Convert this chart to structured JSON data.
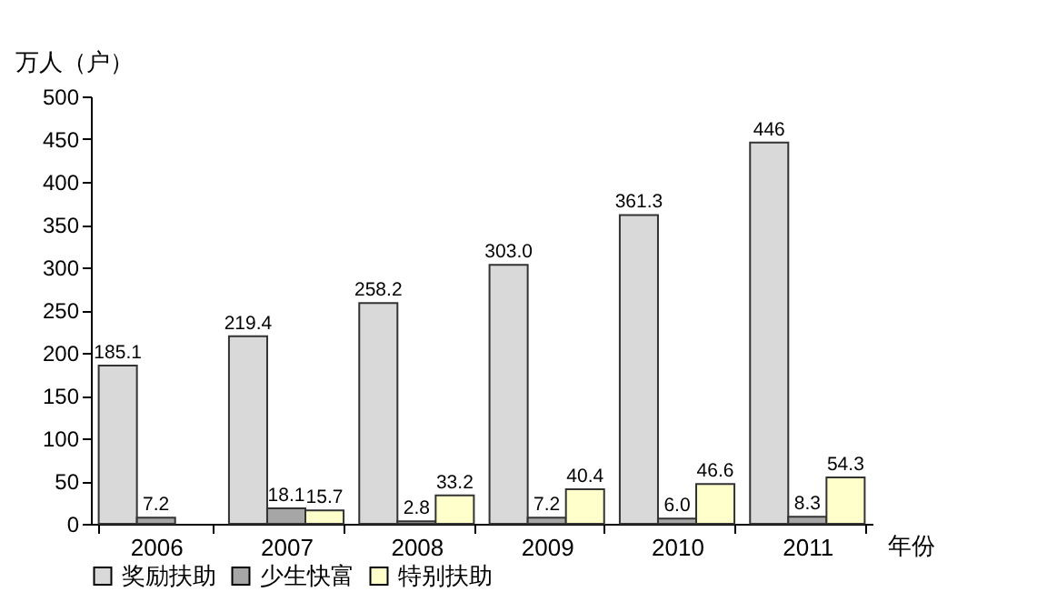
{
  "chart_data": {
    "type": "bar",
    "ylabel": "万人（户）",
    "xlabel": "年份",
    "categories": [
      "2006",
      "2007",
      "2008",
      "2009",
      "2010",
      "2011"
    ],
    "series": [
      {
        "name": "奖励扶助",
        "color": "#d9d9d9",
        "values": [
          185.1,
          219.4,
          258.2,
          303.0,
          361.3,
          446
        ],
        "value_labels": [
          "185.1",
          "219.4",
          "258.2",
          "303.0",
          "361.3",
          "446"
        ]
      },
      {
        "name": "少生快富",
        "color": "#a6a6a6",
        "values": [
          7.2,
          18.1,
          2.8,
          7.2,
          6.0,
          8.3
        ],
        "value_labels": [
          "7.2",
          "18.1",
          "2.8",
          "7.2",
          "6.0",
          "8.3"
        ]
      },
      {
        "name": "特别扶助",
        "color": "#ffffcc",
        "values": [
          null,
          15.7,
          33.2,
          40.4,
          46.6,
          54.3
        ],
        "value_labels": [
          null,
          "15.7",
          "33.2",
          "40.4",
          "46.6",
          "54.3"
        ]
      }
    ],
    "ylim": [
      0,
      500
    ],
    "yticks": [
      0,
      50,
      100,
      150,
      200,
      250,
      300,
      350,
      400,
      450,
      500
    ],
    "grid": false,
    "legend": "bottom"
  }
}
